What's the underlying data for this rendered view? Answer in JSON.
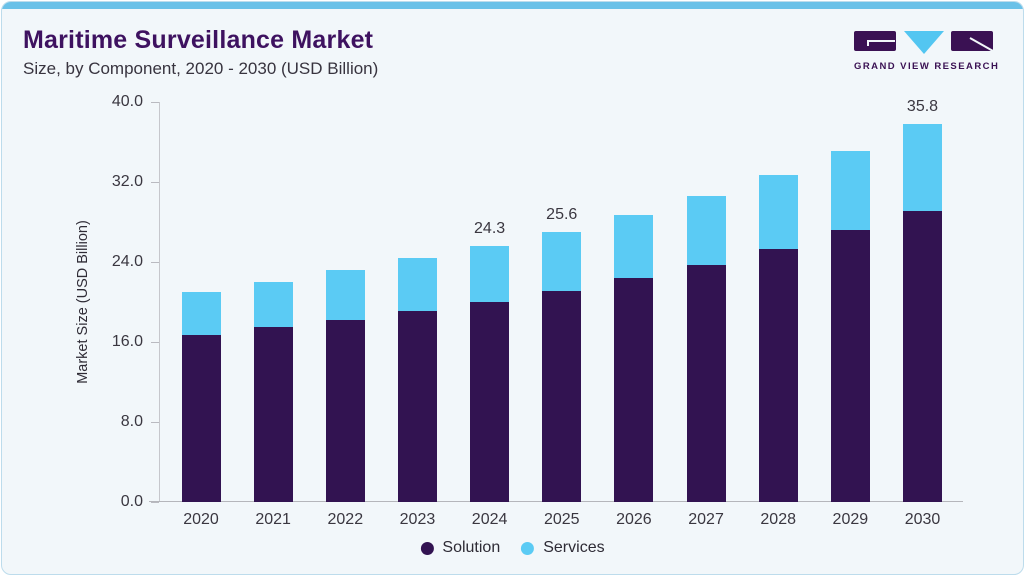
{
  "header": {
    "title": "Maritime Surveillance Market",
    "subtitle": "Size, by Component, 2020 - 2030 (USD Billion)"
  },
  "logo": {
    "text": "GRAND VIEW RESEARCH"
  },
  "colors": {
    "accent_bar": "#6ac1e8",
    "title_purple": "#3e1260",
    "card_background": "#f2f7fa",
    "card_border": "#bddcec",
    "logo_purple": "#3a1153",
    "logo_blue": "#53c6f1",
    "solution_purple": "#321351",
    "services_blue": "#5bcbf4",
    "label_text": "#3a3740"
  },
  "chart_data": {
    "type": "bar",
    "stacked": true,
    "title": "Maritime Surveillance Market Size, by Component, 2020 - 2030 (USD Billion)",
    "categories": [
      "2020",
      "2021",
      "2022",
      "2023",
      "2024",
      "2025",
      "2026",
      "2027",
      "2028",
      "2029",
      "2030"
    ],
    "series": [
      {
        "name": "Solution",
        "color": "#321351",
        "values": [
          15.8,
          16.6,
          17.3,
          18.1,
          19.0,
          20.0,
          21.2,
          22.5,
          24.0,
          25.8,
          27.6
        ]
      },
      {
        "name": "Services",
        "color": "#5bcbf4",
        "values": [
          4.1,
          4.3,
          4.7,
          5.0,
          5.3,
          5.6,
          6.0,
          6.5,
          7.0,
          7.5,
          8.2
        ]
      }
    ],
    "totals": [
      19.9,
      20.9,
      22.0,
      23.1,
      24.3,
      25.6,
      27.2,
      29.0,
      31.0,
      33.3,
      35.8
    ],
    "data_labels": [
      null,
      null,
      null,
      null,
      "24.3",
      "25.6",
      null,
      null,
      null,
      null,
      "35.8"
    ],
    "xlabel": "",
    "ylabel": "Market Size (USD Billion)",
    "ylim": [
      0,
      40
    ],
    "yticks": [
      {
        "value": 40,
        "label": "40.0"
      },
      {
        "value": 32,
        "label": "32.0"
      },
      {
        "value": 24,
        "label": "24.0"
      },
      {
        "value": 16,
        "label": "16.0"
      },
      {
        "value": 8,
        "label": "8.0"
      },
      {
        "value": 0,
        "label": "0.0"
      }
    ],
    "grid": false,
    "legend_position": "bottom"
  }
}
